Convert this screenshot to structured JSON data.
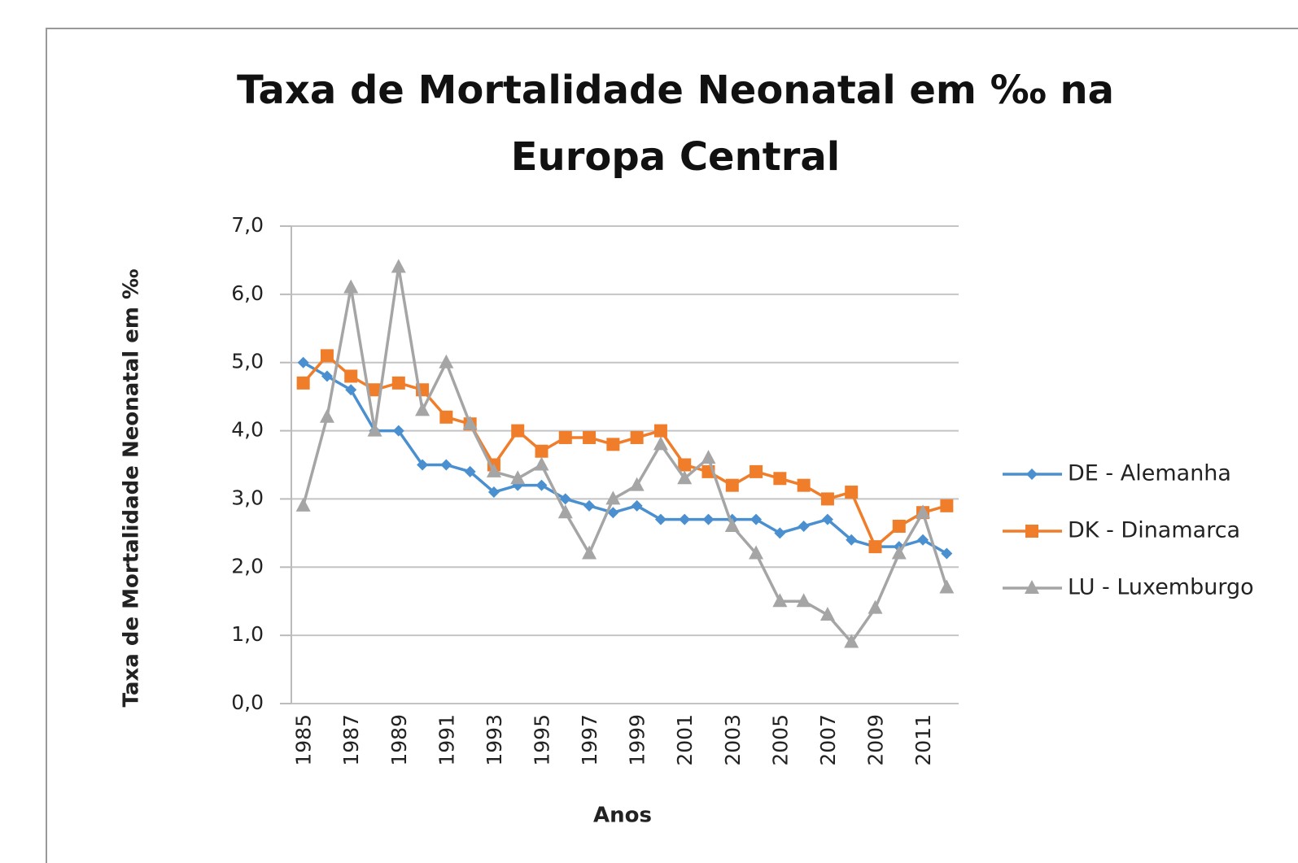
{
  "chart_data": {
    "type": "line",
    "title": "Taxa de Mortalidade Neonatal em ‰  na Europa Central",
    "x_label": "Anos",
    "y_label": "Taxa de Mortalidade Neonatal em ‰",
    "categories": [
      "1985",
      null,
      "1987",
      null,
      "1989",
      null,
      "1991",
      null,
      "1993",
      null,
      "1995",
      null,
      "1997",
      null,
      "1999",
      null,
      "2001",
      null,
      "2003",
      null,
      "2005",
      null,
      "2007",
      null,
      "2009",
      null,
      "2011",
      null
    ],
    "series": [
      {
        "name": "DE - Alemanha",
        "color": "#4a90d0",
        "marker": "diamond",
        "values": [
          5.0,
          4.8,
          4.6,
          4.0,
          4.0,
          3.5,
          3.5,
          3.4,
          3.1,
          3.2,
          3.2,
          3.0,
          2.9,
          2.8,
          2.9,
          2.7,
          2.7,
          2.7,
          2.7,
          2.7,
          2.5,
          2.6,
          2.7,
          2.4,
          2.3,
          2.3,
          2.4,
          2.2
        ]
      },
      {
        "name": "DK - Dinamarca",
        "color": "#f07d2a",
        "marker": "square",
        "values": [
          4.7,
          5.1,
          4.8,
          4.6,
          4.7,
          4.6,
          4.2,
          4.1,
          3.5,
          4.0,
          3.7,
          3.9,
          3.9,
          3.8,
          3.9,
          4.0,
          3.5,
          3.4,
          3.2,
          3.4,
          3.3,
          3.2,
          3.0,
          3.1,
          2.3,
          2.6,
          2.8,
          2.9
        ]
      },
      {
        "name": "LU - Luxemburgo",
        "color": "#a5a5a5",
        "marker": "triangle",
        "values": [
          2.9,
          4.2,
          6.1,
          4.0,
          6.4,
          4.3,
          5.0,
          4.1,
          3.4,
          3.3,
          3.5,
          2.8,
          2.2,
          3.0,
          3.2,
          3.8,
          3.3,
          3.6,
          2.6,
          2.2,
          1.5,
          1.5,
          1.3,
          0.9,
          1.4,
          2.2,
          2.8,
          1.7
        ]
      }
    ],
    "ylim": [
      0,
      7
    ],
    "yticks": [
      {
        "value": 0,
        "label": "0,0"
      },
      {
        "value": 1,
        "label": "1,0"
      },
      {
        "value": 2,
        "label": "2,0"
      },
      {
        "value": 3,
        "label": "3,0"
      },
      {
        "value": 4,
        "label": "4,0"
      },
      {
        "value": 5,
        "label": "5,0"
      },
      {
        "value": 6,
        "label": "6,0"
      },
      {
        "value": 7,
        "label": "7,0"
      }
    ],
    "grid": true,
    "legend": "right"
  }
}
